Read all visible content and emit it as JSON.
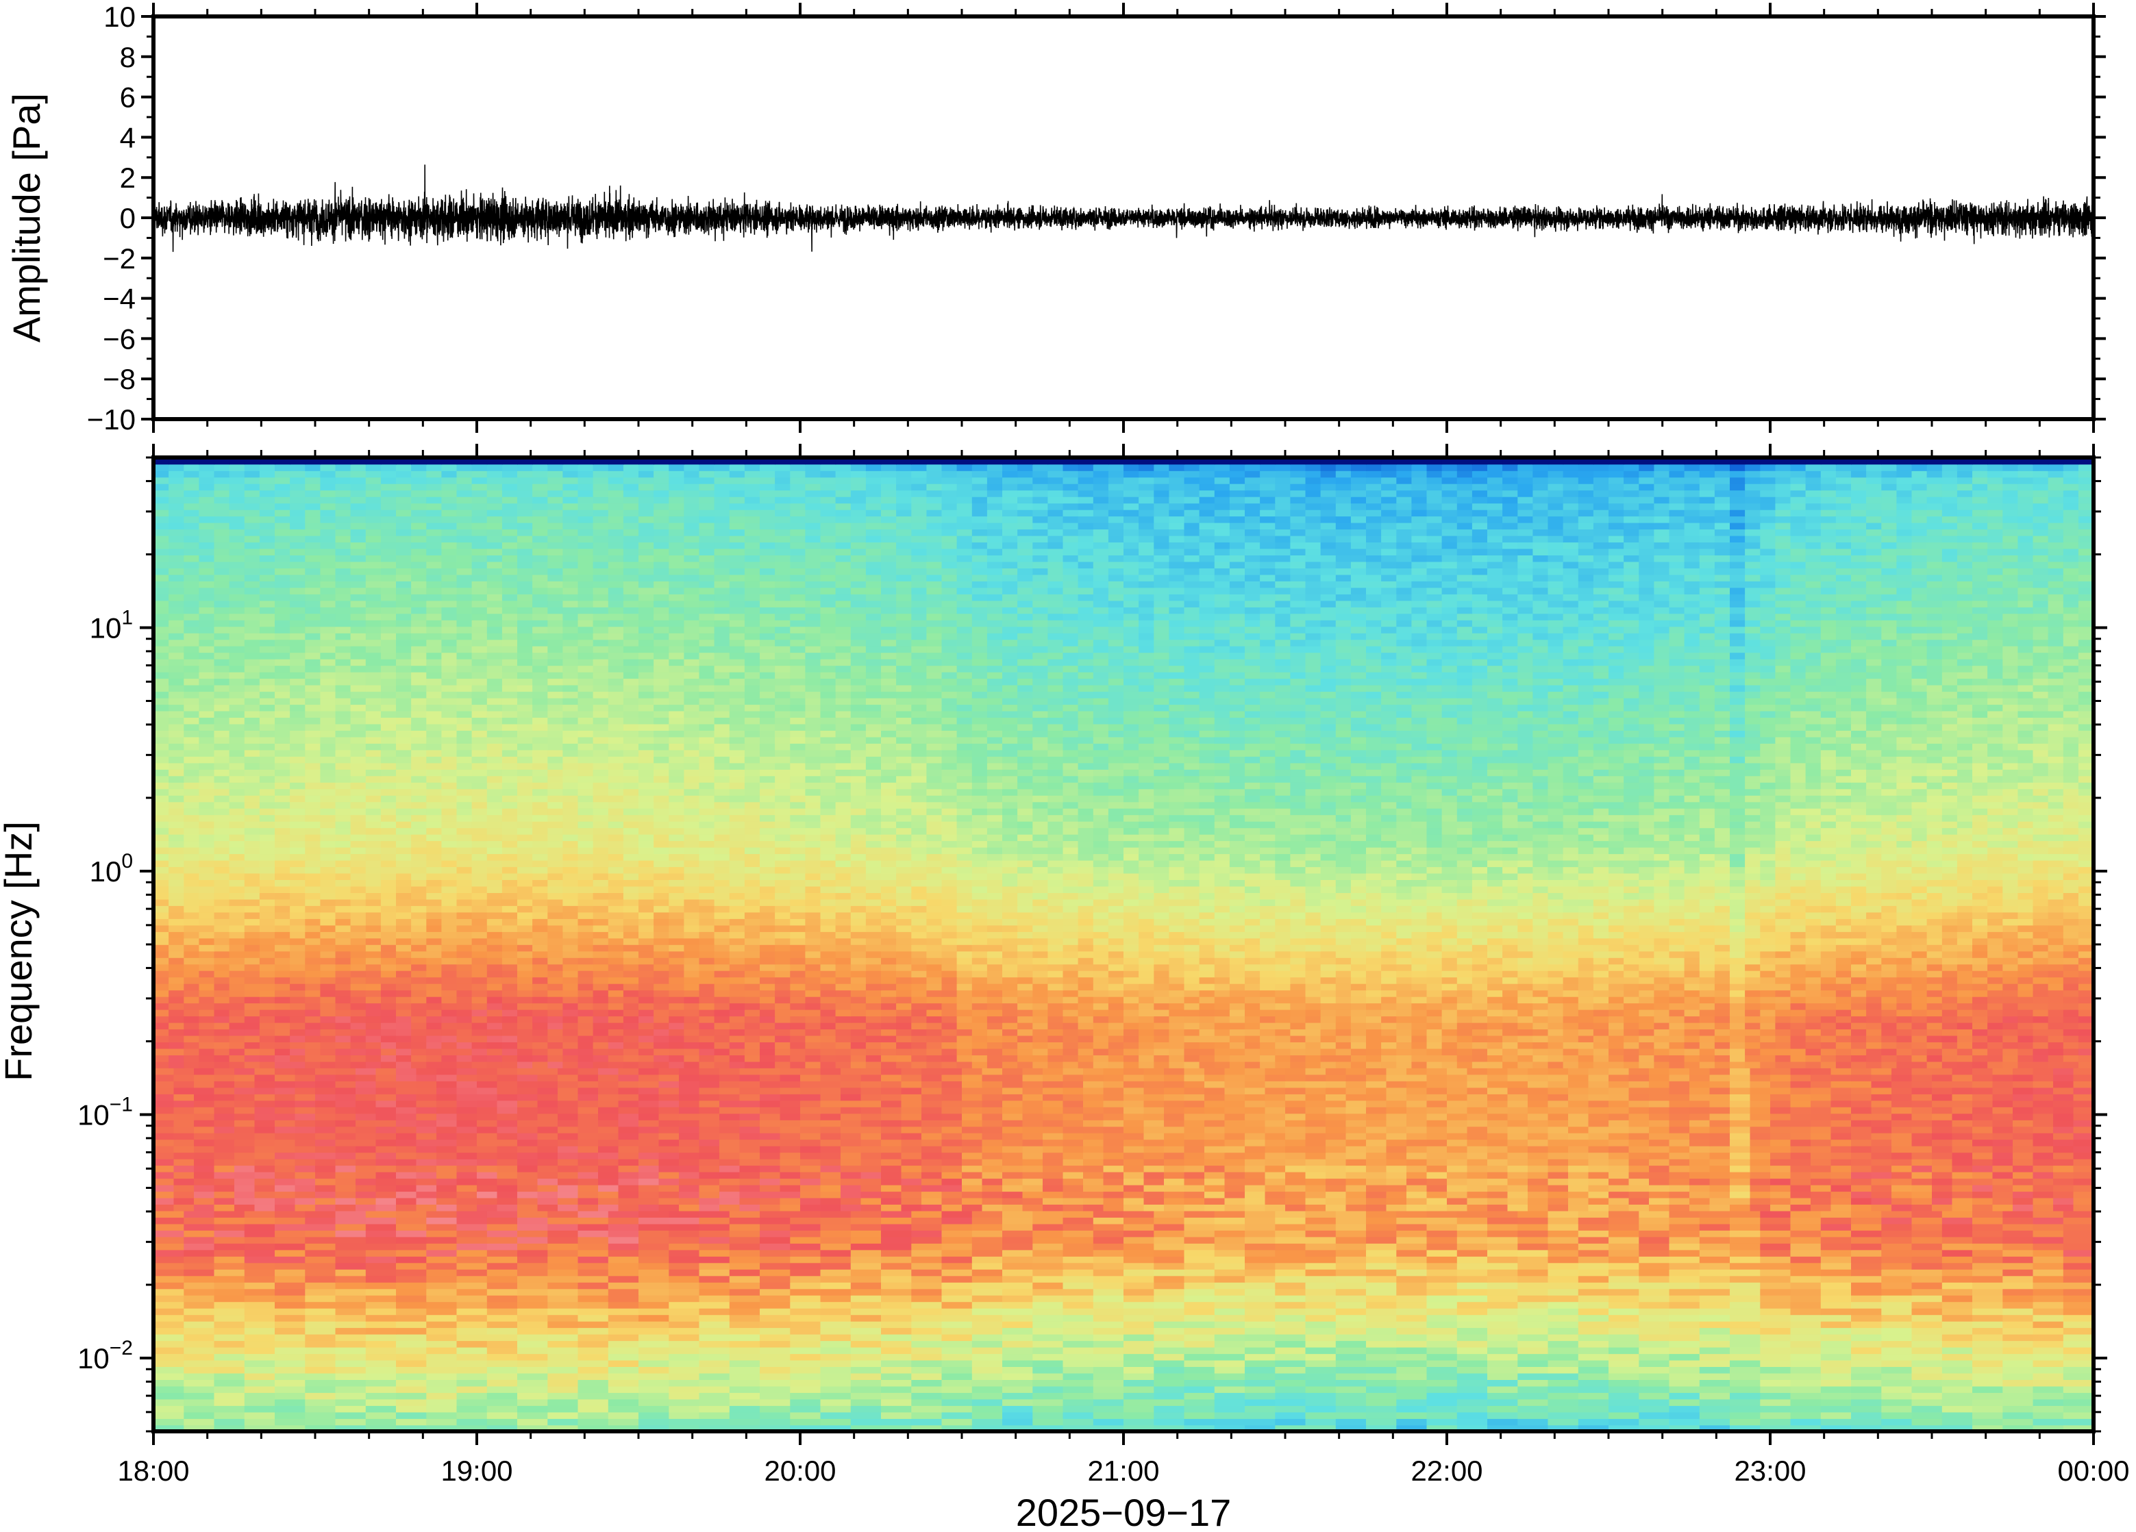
{
  "chart_data": [
    {
      "type": "line",
      "panel": "waveform",
      "ylabel": "Amplitude [Pa]",
      "ylim": [
        -10,
        10
      ],
      "yticks": [
        "10",
        "8",
        "6",
        "4",
        "2",
        "0",
        "−2",
        "−4",
        "−6",
        "−8",
        "−10"
      ],
      "ytick_values": [
        10,
        8,
        6,
        4,
        2,
        0,
        -2,
        -4,
        -6,
        -8,
        -10
      ],
      "x_range": [
        "18:00",
        "00:00"
      ],
      "series": [
        {
          "envelope_hours": [
            0,
            0.5,
            1,
            1.5,
            2,
            2.5,
            3,
            3.5,
            4,
            4.5,
            5,
            5.5,
            6
          ],
          "envelope_pa": [
            1.2,
            1.6,
            1.8,
            1.5,
            1.1,
            0.9,
            0.8,
            0.8,
            0.8,
            0.9,
            1.0,
            1.3,
            1.4
          ],
          "peak_pa": 3.3
        }
      ],
      "line_color": "#000000"
    },
    {
      "type": "heatmap",
      "panel": "spectrogram",
      "ylabel": "Frequency [Hz]",
      "yscale": "log",
      "ylim_hz": [
        0.005,
        50
      ],
      "yticks": [
        {
          "base": "10",
          "exp": "1",
          "value": 10
        },
        {
          "base": "10",
          "exp": "0",
          "value": 1
        },
        {
          "base": "10",
          "exp": "−1",
          "value": 0.1
        },
        {
          "base": "10",
          "exp": "−2",
          "value": 0.01
        }
      ],
      "xticks": [
        "18:00",
        "19:00",
        "20:00",
        "21:00",
        "22:00",
        "23:00",
        "00:00"
      ],
      "xlabel": "2025−09−17",
      "colormap": [
        "#00006e",
        "#0a56d6",
        "#2aa8ef",
        "#5ee0e2",
        "#8ceaa6",
        "#d8f28e",
        "#f7d86a",
        "#f99648",
        "#f0545a",
        "#f8a4a8"
      ]
    }
  ]
}
